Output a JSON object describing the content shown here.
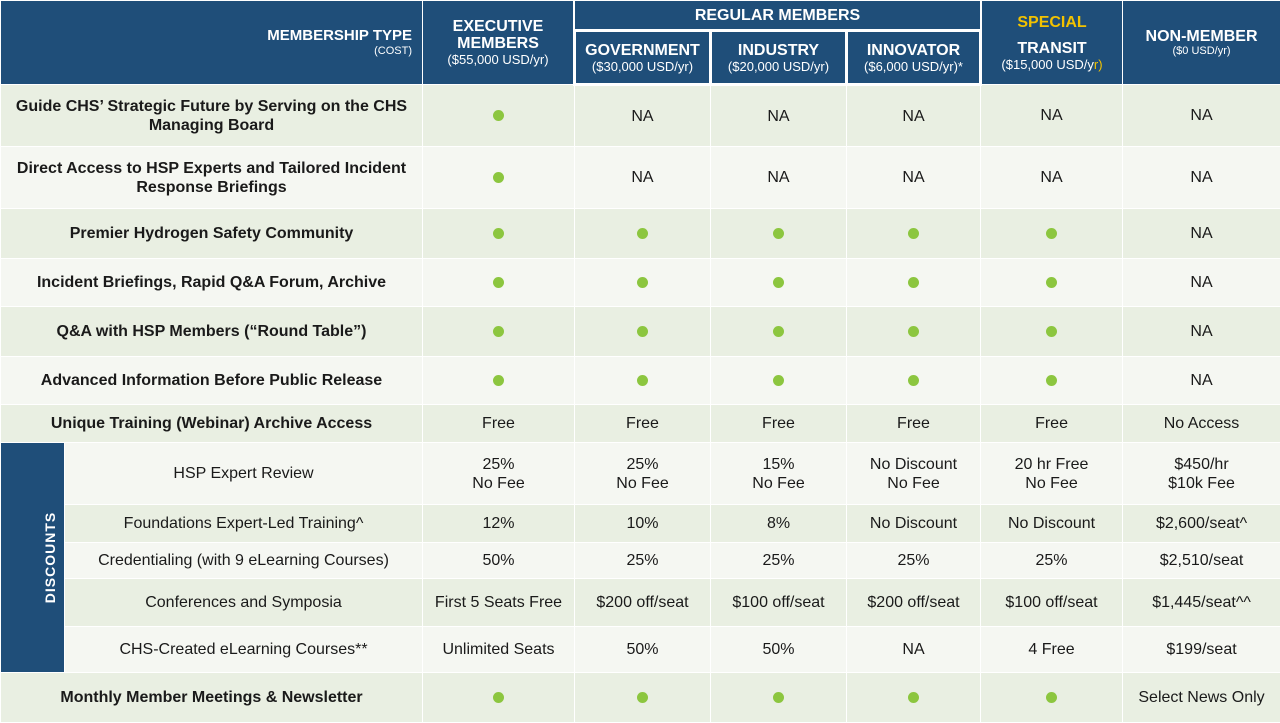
{
  "header": {
    "membership_type": "MEMBERSHIP TYPE",
    "membership_type_sub": "(COST)",
    "regular_members": "REGULAR MEMBERS",
    "columns": [
      {
        "key": "executive",
        "line1": "EXECUTIVE",
        "line2": "MEMBERS",
        "cost": "($55,000 USD/yr)"
      },
      {
        "key": "government",
        "line1": "GOVERNMENT",
        "cost": "($30,000 USD/yr)"
      },
      {
        "key": "industry",
        "line1": "INDUSTRY",
        "cost": "($20,000 USD/yr)"
      },
      {
        "key": "innovator",
        "line1": "INNOVATOR",
        "cost": "($6,000 USD/yr)*"
      },
      {
        "key": "transit",
        "special": "SPECIAL",
        "line1": "TRANSIT",
        "cost_prefix": "($15,000 USD/y",
        "cost_suffix": "r)"
      },
      {
        "key": "nonmember",
        "line1": "NON-MEMBER",
        "cost": "($0 USD/yr)"
      }
    ]
  },
  "rows": [
    {
      "feature": "Guide CHS’ Strategic Future by Serving on the CHS Managing Board",
      "cells": [
        "dot",
        "NA",
        "NA",
        "NA",
        "NA",
        "NA"
      ]
    },
    {
      "feature": "Direct Access to HSP Experts and Tailored Incident Response Briefings",
      "cells": [
        "dot",
        "NA",
        "NA",
        "NA",
        "NA",
        "NA"
      ]
    },
    {
      "feature": "Premier Hydrogen Safety Community",
      "cells": [
        "dot",
        "dot",
        "dot",
        "dot",
        "dot",
        "NA"
      ]
    },
    {
      "feature": "Incident Briefings, Rapid Q&A Forum, Archive",
      "cells": [
        "dot",
        "dot",
        "dot",
        "dot",
        "dot",
        "NA"
      ]
    },
    {
      "feature": "Q&A with HSP Members (“Round Table”)",
      "cells": [
        "dot",
        "dot",
        "dot",
        "dot",
        "dot",
        "NA"
      ]
    },
    {
      "feature": "Advanced Information Before Public Release",
      "cells": [
        "dot",
        "dot",
        "dot",
        "dot",
        "dot",
        "NA"
      ]
    },
    {
      "feature": "Unique Training (Webinar) Archive Access",
      "cells": [
        "Free",
        "Free",
        "Free",
        "Free",
        "Free",
        "No Access"
      ]
    }
  ],
  "discounts": {
    "label": "DISCOUNTS",
    "rows": [
      {
        "feature": "HSP Expert Review",
        "cells": [
          [
            "25%",
            "No Fee"
          ],
          [
            "25%",
            "No Fee"
          ],
          [
            "15%",
            "No Fee"
          ],
          [
            "No Discount",
            "No Fee"
          ],
          [
            "20 hr Free",
            "No Fee"
          ],
          [
            "$450/hr",
            "$10k Fee"
          ]
        ]
      },
      {
        "feature": "Foundations Expert-Led Training^",
        "cells": [
          "12%",
          "10%",
          "8%",
          "No Discount",
          "No Discount",
          "$2,600/seat^"
        ]
      },
      {
        "feature": "Credentialing (with 9 eLearning Courses)",
        "cells": [
          "50%",
          "25%",
          "25%",
          "25%",
          "25%",
          "$2,510/seat"
        ]
      },
      {
        "feature": "Conferences and Symposia",
        "cells": [
          "First 5 Seats Free",
          "$200 off/seat",
          "$100 off/seat",
          "$200 off/seat",
          "$100 off/seat",
          "$1,445/seat^^"
        ]
      },
      {
        "feature": "CHS-Created eLearning Courses**",
        "cells": [
          "Unlimited Seats",
          "50%",
          "50%",
          "NA",
          "4 Free",
          "$199/seat"
        ]
      }
    ]
  },
  "final_row": {
    "feature": "Monthly Member Meetings & Newsletter",
    "cells": [
      "dot",
      "dot",
      "dot",
      "dot",
      "dot",
      "Select News Only"
    ]
  },
  "colors": {
    "header": "#1f4e79",
    "dot": "#8cc63f",
    "special": "#f2c200",
    "row_alt": "#e9efe2",
    "row_plain": "#f5f7f2"
  }
}
